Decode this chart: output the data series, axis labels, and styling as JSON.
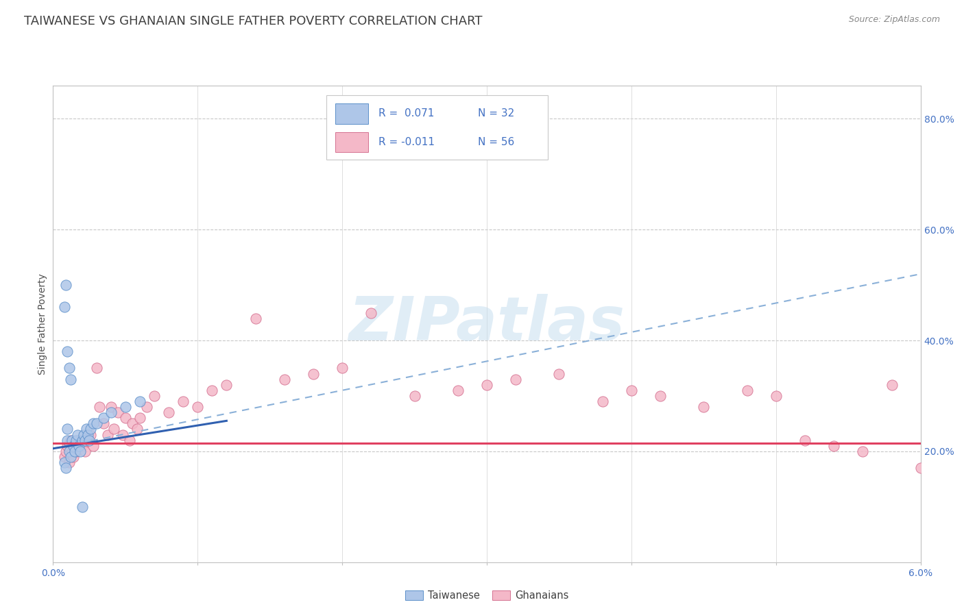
{
  "title": "TAIWANESE VS GHANAIAN SINGLE FATHER POVERTY CORRELATION CHART",
  "source": "Source: ZipAtlas.com",
  "ylabel": "Single Father Poverty",
  "xlim": [
    0.0,
    0.06
  ],
  "ylim": [
    0.0,
    0.86
  ],
  "right_yticks": [
    0.0,
    0.2,
    0.4,
    0.6,
    0.8
  ],
  "right_yticklabels": [
    "",
    "20.0%",
    "40.0%",
    "60.0%",
    "80.0%"
  ],
  "watermark_text": "ZIPatlas",
  "taiwanese_color": "#aec6e8",
  "taiwanese_edge": "#5b8fc9",
  "ghanaian_color": "#f4b8c8",
  "ghanaian_edge": "#d47090",
  "trend_blue_color": "#3060b0",
  "trend_pink_color": "#e04060",
  "trend_dash_color": "#8ab0d8",
  "background_color": "#ffffff",
  "title_color": "#404040",
  "title_fontsize": 13,
  "axis_label_fontsize": 10,
  "tick_fontsize": 10,
  "source_fontsize": 9,
  "taiwanese_points_x": [
    0.0008,
    0.0009,
    0.001,
    0.001,
    0.0011,
    0.0012,
    0.0013,
    0.0014,
    0.0015,
    0.0016,
    0.0017,
    0.0018,
    0.0019,
    0.002,
    0.0021,
    0.0022,
    0.0023,
    0.0024,
    0.0025,
    0.0026,
    0.0028,
    0.003,
    0.0035,
    0.004,
    0.005,
    0.006,
    0.0008,
    0.0009,
    0.001,
    0.0011,
    0.0012,
    0.002
  ],
  "taiwanese_points_y": [
    0.18,
    0.17,
    0.22,
    0.24,
    0.2,
    0.19,
    0.22,
    0.21,
    0.2,
    0.22,
    0.23,
    0.21,
    0.2,
    0.22,
    0.23,
    0.22,
    0.24,
    0.23,
    0.22,
    0.24,
    0.25,
    0.25,
    0.26,
    0.27,
    0.28,
    0.29,
    0.46,
    0.5,
    0.38,
    0.35,
    0.33,
    0.1
  ],
  "ghanaian_points_x": [
    0.0008,
    0.0009,
    0.001,
    0.0011,
    0.0012,
    0.0013,
    0.0014,
    0.0015,
    0.0016,
    0.0018,
    0.002,
    0.0022,
    0.0024,
    0.0026,
    0.0028,
    0.003,
    0.0032,
    0.0035,
    0.0038,
    0.004,
    0.0042,
    0.0045,
    0.0048,
    0.005,
    0.0053,
    0.0055,
    0.0058,
    0.006,
    0.0065,
    0.007,
    0.008,
    0.009,
    0.01,
    0.011,
    0.012,
    0.014,
    0.016,
    0.018,
    0.02,
    0.022,
    0.025,
    0.028,
    0.03,
    0.032,
    0.035,
    0.038,
    0.04,
    0.042,
    0.045,
    0.048,
    0.05,
    0.052,
    0.054,
    0.056,
    0.058,
    0.06
  ],
  "ghanaian_points_y": [
    0.19,
    0.2,
    0.21,
    0.18,
    0.22,
    0.2,
    0.19,
    0.21,
    0.2,
    0.22,
    0.21,
    0.2,
    0.22,
    0.23,
    0.21,
    0.35,
    0.28,
    0.25,
    0.23,
    0.28,
    0.24,
    0.27,
    0.23,
    0.26,
    0.22,
    0.25,
    0.24,
    0.26,
    0.28,
    0.3,
    0.27,
    0.29,
    0.28,
    0.31,
    0.32,
    0.44,
    0.33,
    0.34,
    0.35,
    0.45,
    0.3,
    0.31,
    0.32,
    0.33,
    0.34,
    0.29,
    0.31,
    0.3,
    0.28,
    0.31,
    0.3,
    0.22,
    0.21,
    0.2,
    0.32,
    0.17
  ],
  "blue_line_x0": 0.0,
  "blue_line_x1": 0.012,
  "blue_line_y0": 0.205,
  "blue_line_y1": 0.255,
  "dash_line_x0": 0.0,
  "dash_line_x1": 0.06,
  "dash_line_y0": 0.205,
  "dash_line_y1": 0.52,
  "pink_line_x0": 0.0,
  "pink_line_x1": 0.06,
  "pink_line_y0": 0.215,
  "pink_line_y1": 0.215
}
